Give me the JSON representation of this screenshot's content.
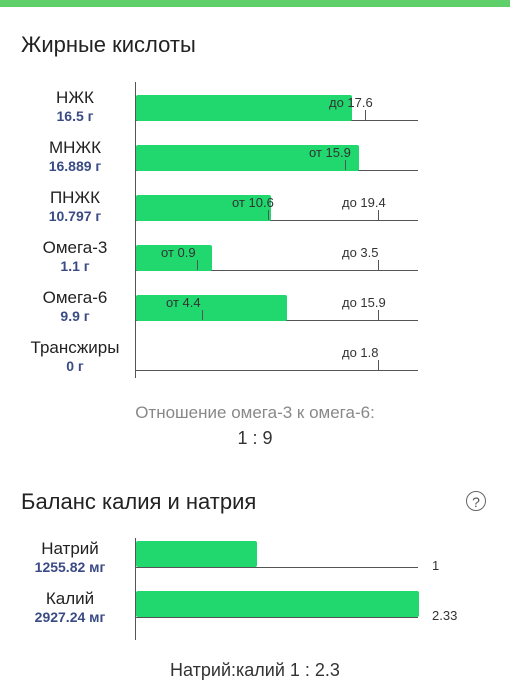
{
  "fatty_acids": {
    "title": "Жирные кислоты",
    "rows": [
      {
        "name": "НЖК",
        "value": "16.5 г",
        "amount": 16.5,
        "markers": [
          {
            "text": "до 17.6",
            "at": 17.6
          }
        ]
      },
      {
        "name": "МНЖК",
        "value": "16.889 г",
        "amount": 16.889,
        "markers": [
          {
            "text": "от 15.9",
            "at": 15.9
          }
        ]
      },
      {
        "name": "ПНЖК",
        "value": "10.797 г",
        "amount": 10.797,
        "markers": [
          {
            "text": "от 10.6",
            "at": 10.6
          },
          {
            "text": "до 19.4",
            "at": 19.4
          }
        ]
      },
      {
        "name": "Омега-3",
        "value": "1.1 г",
        "amount": 1.1,
        "markers": [
          {
            "text": "от 0.9",
            "at": 0.9
          },
          {
            "text": "до 3.5",
            "at": 3.5
          }
        ]
      },
      {
        "name": "Омега-6",
        "value": "9.9 г",
        "amount": 9.9,
        "markers": [
          {
            "text": "от 4.4",
            "at": 4.4
          },
          {
            "text": "до 15.9",
            "at": 15.9
          }
        ]
      },
      {
        "name": "Трансжиры",
        "value": "0 г",
        "amount": 0,
        "markers": [
          {
            "text": "до 1.8",
            "at": 1.8
          }
        ]
      }
    ],
    "ratio_label": "Отношение омега-3 к омега-6:",
    "ratio_value": "1 : 9"
  },
  "potassium_sodium": {
    "title": "Баланс калия и натрия",
    "rows": [
      {
        "name": "Натрий",
        "value": "1255.82 мг",
        "relative": 1,
        "marker": "1"
      },
      {
        "name": "Калий",
        "value": "2927.24 мг",
        "relative": 2.33,
        "marker": "2.33"
      }
    ],
    "ratio": "Натрий:калий 1 : 2.3"
  },
  "colors": {
    "bar": "#21d86e",
    "value_text": "#3a4a85",
    "top_accent": "#5fd069"
  }
}
